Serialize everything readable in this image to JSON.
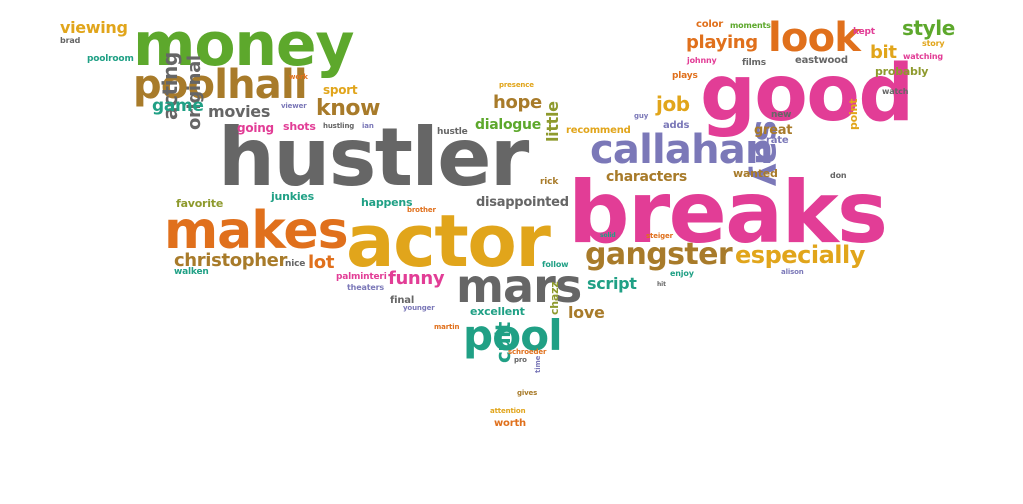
{
  "palette": {
    "orange": "#E0701C",
    "green": "#5DA82C",
    "pink": "#E23D96",
    "gray": "#666666",
    "purple": "#7B78B8",
    "gold": "#E1A51B",
    "brown": "#A87B2A",
    "teal": "#20A085",
    "olive": "#8E9A2D"
  },
  "words": [
    {
      "text": "hustler",
      "color": "#666666"
    },
    {
      "text": "actor",
      "color": "#E1A51B"
    },
    {
      "text": "breaks",
      "color": "#E23D96"
    },
    {
      "text": "good",
      "color": "#E23D96"
    },
    {
      "text": "money",
      "color": "#5DA82C"
    },
    {
      "text": "makes",
      "color": "#E0701C"
    },
    {
      "text": "mars",
      "color": "#666666"
    },
    {
      "text": "poolhall",
      "color": "#A87B2A"
    },
    {
      "text": "callahan",
      "color": "#7B78B8"
    },
    {
      "text": "look",
      "color": "#E0701C"
    },
    {
      "text": "pool",
      "color": "#20A085"
    },
    {
      "text": "gangster",
      "color": "#A87B2A"
    },
    {
      "text": "especially",
      "color": "#E1A51B"
    },
    {
      "text": "say",
      "color": "#7B78B8"
    },
    {
      "text": "know",
      "color": "#A87B2A"
    },
    {
      "text": "christopher",
      "color": "#A87B2A"
    },
    {
      "text": "style",
      "color": "#5DA82C"
    },
    {
      "text": "playing",
      "color": "#E0701C"
    },
    {
      "text": "acting",
      "color": "#666666"
    },
    {
      "text": "original",
      "color": "#666666"
    },
    {
      "text": "movies",
      "color": "#666666"
    },
    {
      "text": "game",
      "color": "#20A085"
    },
    {
      "text": "hope",
      "color": "#A87B2A"
    },
    {
      "text": "dialogue",
      "color": "#5DA82C"
    },
    {
      "text": "job",
      "color": "#E1A51B"
    },
    {
      "text": "characters",
      "color": "#A87B2A"
    },
    {
      "text": "funny",
      "color": "#E23D96"
    },
    {
      "text": "script",
      "color": "#20A085"
    },
    {
      "text": "love",
      "color": "#A87B2A"
    },
    {
      "text": "lot",
      "color": "#E0701C"
    },
    {
      "text": "cult",
      "color": "#20A085"
    },
    {
      "text": "little",
      "color": "#8E9A2D"
    },
    {
      "text": "disappointed",
      "color": "#666666"
    },
    {
      "text": "viewing",
      "color": "#E1A51B"
    },
    {
      "text": "bit",
      "color": "#E1A51B"
    },
    {
      "text": "sport",
      "color": "#E1A51B"
    },
    {
      "text": "going",
      "color": "#E23D96"
    },
    {
      "text": "shots",
      "color": "#E23D96"
    },
    {
      "text": "favorite",
      "color": "#8E9A2D"
    },
    {
      "text": "junkies",
      "color": "#20A085"
    },
    {
      "text": "happens",
      "color": "#20A085"
    },
    {
      "text": "great",
      "color": "#A87B2A"
    },
    {
      "text": "wanted",
      "color": "#A87B2A"
    },
    {
      "text": "excellent",
      "color": "#20A085"
    },
    {
      "text": "chazz",
      "color": "#8E9A2D"
    },
    {
      "text": "probably",
      "color": "#8E9A2D"
    },
    {
      "text": "point",
      "color": "#E1A51B"
    },
    {
      "text": "rate",
      "color": "#7B78B8"
    },
    {
      "text": "adds",
      "color": "#7B78B8"
    },
    {
      "text": "worth",
      "color": "#E0701C"
    },
    {
      "text": "final",
      "color": "#666666"
    },
    {
      "text": "nice",
      "color": "#666666"
    },
    {
      "text": "walken",
      "color": "#20A085"
    },
    {
      "text": "palminteri",
      "color": "#E23D96"
    },
    {
      "text": "theaters",
      "color": "#7B78B8"
    },
    {
      "text": "hustle",
      "color": "#666666"
    },
    {
      "text": "recommend",
      "color": "#E1A51B"
    },
    {
      "text": "rick",
      "color": "#A87B2A"
    },
    {
      "text": "follow",
      "color": "#20A085"
    },
    {
      "text": "plays",
      "color": "#E0701C"
    },
    {
      "text": "johnny",
      "color": "#E23D96"
    },
    {
      "text": "films",
      "color": "#666666"
    },
    {
      "text": "eastwood",
      "color": "#666666"
    },
    {
      "text": "color",
      "color": "#E0701C"
    },
    {
      "text": "moments",
      "color": "#5DA82C"
    },
    {
      "text": "kept",
      "color": "#E23D96"
    },
    {
      "text": "story",
      "color": "#E1A51B"
    },
    {
      "text": "watching",
      "color": "#E23D96"
    },
    {
      "text": "watch",
      "color": "#666666"
    },
    {
      "text": "brad",
      "color": "#666666"
    },
    {
      "text": "poolroom",
      "color": "#20A085"
    },
    {
      "text": "work",
      "color": "#E0701C"
    },
    {
      "text": "viewer",
      "color": "#7B78B8"
    },
    {
      "text": "presence",
      "color": "#E1A51B"
    },
    {
      "text": "hustling",
      "color": "#666666"
    },
    {
      "text": "ian",
      "color": "#7B78B8"
    },
    {
      "text": "guy",
      "color": "#7B78B8"
    },
    {
      "text": "new",
      "color": "#666666"
    },
    {
      "text": "don",
      "color": "#666666"
    },
    {
      "text": "brother",
      "color": "#E0701C"
    },
    {
      "text": "solid",
      "color": "#20A085"
    },
    {
      "text": "steiger",
      "color": "#E0701C"
    },
    {
      "text": "enjoy",
      "color": "#20A085"
    },
    {
      "text": "hit",
      "color": "#666666"
    },
    {
      "text": "alison",
      "color": "#7B78B8"
    },
    {
      "text": "younger",
      "color": "#7B78B8"
    },
    {
      "text": "martin",
      "color": "#E0701C"
    },
    {
      "text": "schroeder",
      "color": "#E0701C"
    },
    {
      "text": "pro",
      "color": "#666666"
    },
    {
      "text": "time",
      "color": "#7B78B8"
    },
    {
      "text": "gives",
      "color": "#A87B2A"
    },
    {
      "text": "attention",
      "color": "#E1A51B"
    }
  ]
}
